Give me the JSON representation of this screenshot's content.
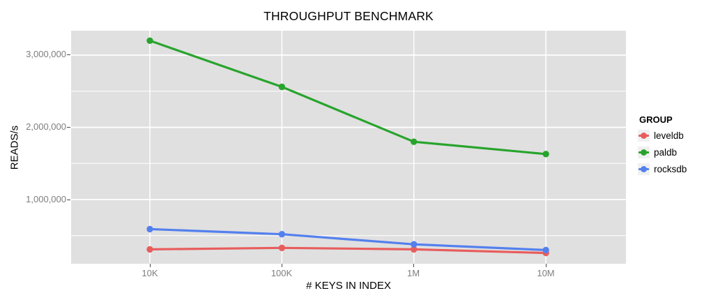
{
  "chart_data": {
    "type": "line",
    "title": "THROUGHPUT BENCHMARK",
    "xlabel": "# KEYS IN INDEX",
    "ylabel": "READS/s",
    "x_scale": "log10",
    "x": [
      10000,
      100000,
      1000000,
      10000000
    ],
    "x_tick_labels": [
      "10K",
      "100K",
      "1M",
      "10M"
    ],
    "y_ticks": [
      1000000,
      2000000,
      3000000
    ],
    "y_tick_labels": [
      "1,000,000",
      "2,000,000",
      "3,000,000"
    ],
    "y_minor_ticks": [
      500000,
      1500000,
      2500000
    ],
    "xlim_log10": [
      3.403,
      7.607
    ],
    "ylim": [
      111000,
      3338000
    ],
    "grid": {
      "horizontal": "major+minor",
      "vertical": "major",
      "color": "#ffffff",
      "panel_bg": "#e0e0e0"
    },
    "legend": {
      "title": "GROUP",
      "position": "right"
    },
    "series": [
      {
        "name": "leveldb",
        "color": "#e85d5d",
        "values": [
          310000,
          330000,
          310000,
          260000
        ]
      },
      {
        "name": "paldb",
        "color": "#28a42c",
        "values": [
          3200000,
          2560000,
          1800000,
          1630000
        ]
      },
      {
        "name": "rocksdb",
        "color": "#5480ee",
        "values": [
          590000,
          520000,
          380000,
          300000
        ]
      }
    ],
    "style": {
      "tick_label_color": "#7e7e7e",
      "title_color": "#000000",
      "legend_key_bg": "#f0f0f0",
      "line_width": 3.2,
      "point_radius": 4.7
    }
  }
}
